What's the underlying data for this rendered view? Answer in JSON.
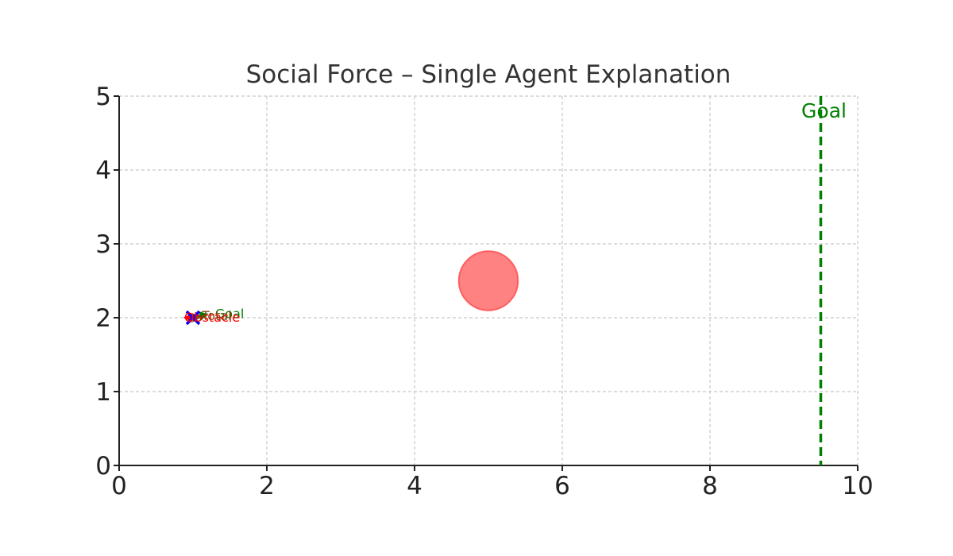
{
  "chart_data": {
    "type": "scatter",
    "title": "Social Force – Single Agent Explanation",
    "xlabel": "",
    "ylabel": "",
    "xlim": [
      0,
      10
    ],
    "ylim": [
      0,
      5
    ],
    "xticks": [
      "0",
      "2",
      "4",
      "6",
      "8",
      "10"
    ],
    "yticks": [
      "0",
      "1",
      "2",
      "3",
      "4",
      "5"
    ],
    "grid": true,
    "goal_line": {
      "x": 9.5,
      "label": "Goal",
      "color": "#008000"
    },
    "obstacle": {
      "x": 5.0,
      "y": 2.5,
      "radius": 0.4,
      "color": "#ff4d4d"
    },
    "agent": {
      "x": 1.0,
      "y": 2.0,
      "color": "#0000ff"
    },
    "force_vectors": [
      {
        "name": "Goal",
        "dx": 0.2,
        "dy": 0.05,
        "color": "#008000"
      },
      {
        "name": "Obstacle",
        "dx": -0.12,
        "dy": 0.0,
        "color": "#ff0000"
      },
      {
        "name": "Total",
        "dx": 0.1,
        "dy": 0.0,
        "color": "#8b4513"
      }
    ],
    "annotations": [
      {
        "text": "Goal",
        "x": 1.3,
        "y": 2.05,
        "color": "#008000"
      },
      {
        "text": "Obstacle",
        "x": 0.88,
        "y": 2.0,
        "color": "#ff0000"
      },
      {
        "text": "Total",
        "x": 1.12,
        "y": 2.02,
        "color": "#8b4513"
      }
    ]
  }
}
